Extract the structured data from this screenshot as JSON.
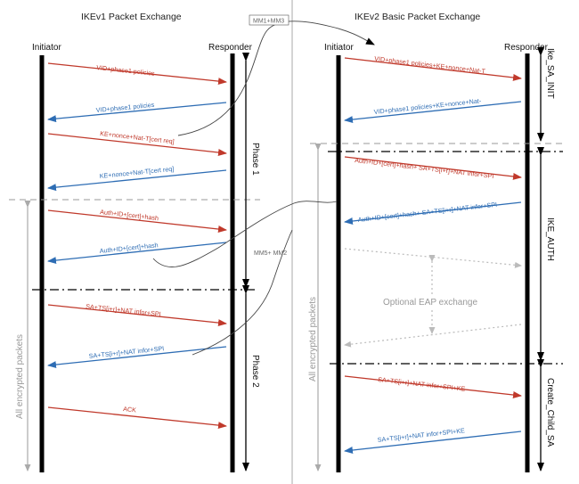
{
  "left": {
    "title": "IKEv1 Packet Exchange",
    "initiator": "Initiator",
    "responder": "Responder",
    "phase1": "Phase 1",
    "phase2": "Phase 2",
    "encrypted": "All encrypted packets",
    "messages": [
      "VID+phase1 policies",
      "VID+phase1 policies",
      "KE+nonce+Nat-T[cert req]",
      "KE+nonce+Nat-T[cert req]",
      "Auth+ID+[cert]+hash",
      "Auth+ID+[cert]+hash",
      "SA+TS[i+r]+NAT infor+SPI",
      "SA+TS[i+r]+NAT infor+SPI",
      "ACK"
    ]
  },
  "right": {
    "title": "IKEv2 Basic Packet Exchange",
    "initiator": "Initiator",
    "responder": "Responder",
    "ike_sa_init": "Ike_SA_INIT",
    "ike_auth": "IKE_AUTH",
    "create_child_sa": "Create_Child_SA",
    "encrypted": "All encrypted packets",
    "optional_eap": "Optional EAP exchange",
    "messages": [
      "VID+phase1 policies+KE+nonce+Nat-T",
      "VID+phase1 policies+KE+nonce+Nat-",
      "Auth+ID+[cert]+hash+ SA+TS[i+r]+NAT infor+SPI",
      "Auth+ID+[cert]+hash+ SA+TS[i+r]+NAT infor+SPI",
      "SA+TS[i+r]+NAT infor+SPI+KE",
      "SA+TS[i+r]+NAT infor+SPI+KE"
    ]
  },
  "annotations": {
    "mm1_mm3": "MM1+MM3",
    "mm5_mm2": "MM5+ MM2"
  },
  "colors": {
    "request": "#c0392b",
    "response": "#2e6db4",
    "line": "#000000",
    "divider": "#999999"
  }
}
